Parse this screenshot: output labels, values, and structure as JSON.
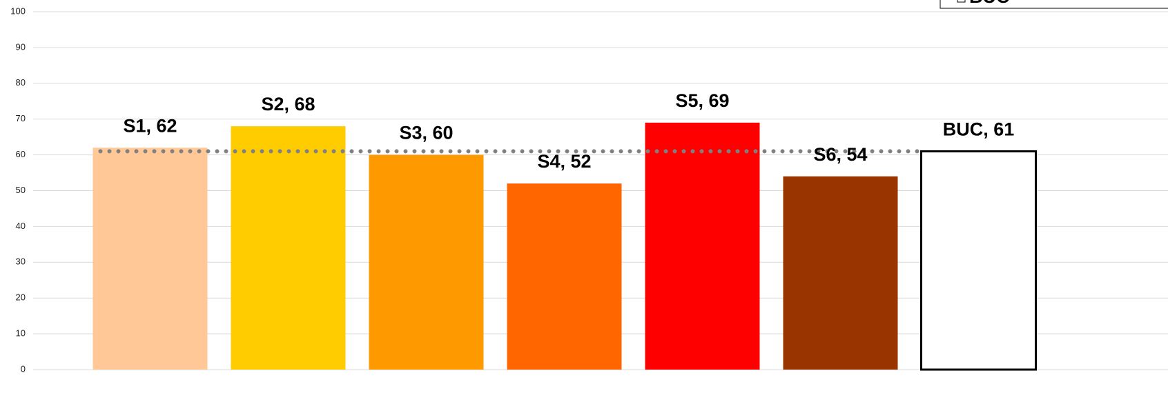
{
  "chart_data": {
    "type": "bar",
    "values": [
      62,
      68,
      60,
      52,
      69,
      54,
      61
    ],
    "value_labels": [
      "S1, 62",
      "S2, 68",
      "S3, 60",
      "S4, 52",
      "S5, 69",
      "S6, 54",
      "BUC, 61"
    ],
    "colors": [
      "#ffc896",
      "#ffcc00",
      "#ff9900",
      "#ff6600",
      "#ff0000",
      "#993300",
      "#ffffff"
    ],
    "legend": [
      "BUC"
    ],
    "ylim": [
      0,
      100
    ],
    "yticks": [
      0,
      10,
      20,
      30,
      40,
      50,
      60,
      70,
      80,
      90,
      100
    ],
    "grid": true
  }
}
